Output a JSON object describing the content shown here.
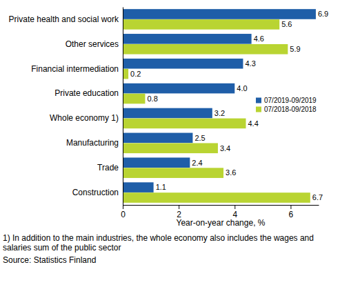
{
  "chart_data": {
    "type": "bar",
    "orientation": "horizontal",
    "categories": [
      "Private health and social work",
      "Other services",
      "Financial intermediation",
      "Private education",
      "Whole economy 1)",
      "Manufacturing",
      "Trade",
      "Construction"
    ],
    "series": [
      {
        "name": "07/2019-09/2019",
        "color": "#1f5ea8",
        "values": [
          6.9,
          4.6,
          4.3,
          4.0,
          3.2,
          2.5,
          2.4,
          1.1
        ],
        "value_labels": [
          "6.9",
          "4.6",
          "4.3",
          "4.0",
          "3.2",
          "2.5",
          "2.4",
          "1.1"
        ]
      },
      {
        "name": "07/2018-09/2018",
        "color": "#b9d432",
        "values": [
          5.6,
          5.9,
          0.2,
          0.8,
          4.4,
          3.4,
          3.6,
          6.7
        ],
        "value_labels": [
          "5.6",
          "5.9",
          "0.2",
          "0.8",
          "4.4",
          "3.4",
          "3.6",
          "6.7"
        ]
      }
    ],
    "x_label": "Year-on-year change, %",
    "xlim": [
      0,
      7
    ],
    "xticks": [
      0,
      2,
      4,
      6
    ],
    "grid": false,
    "legend": "right",
    "data_labels": true,
    "annotations": [
      "1) In addition to the main industries, the whole economy also includes the wages and salaries sum of the public sector",
      "Source: Statistics Finland"
    ]
  }
}
